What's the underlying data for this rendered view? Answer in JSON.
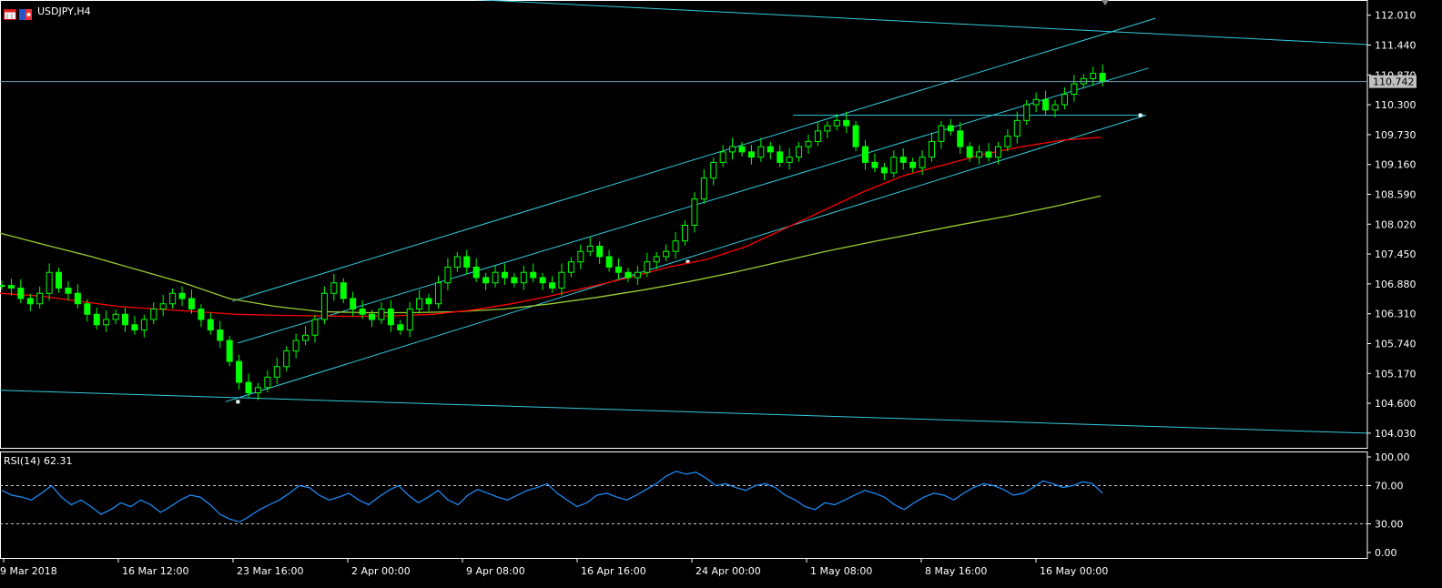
{
  "window": {
    "symbol_label": "USDJPY,H4",
    "indicator_label": "RSI(14) 62.31",
    "current_price": "110.742"
  },
  "colors": {
    "background": "#000000",
    "axis": "#ffffff",
    "candle": "#00ff00",
    "ma_red": "#ff0000",
    "ma_olive": "#9acd32",
    "channel": "#33ccdd",
    "rsi": "#1e90ff",
    "price_line": "#6fa0b8"
  },
  "chart_data": {
    "type": "line",
    "main": {
      "y_ticks": [
        "112.010",
        "111.440",
        "110.870",
        "110.300",
        "109.730",
        "109.160",
        "108.590",
        "108.020",
        "107.450",
        "106.880",
        "106.310",
        "105.740",
        "105.170",
        "104.600",
        "104.030"
      ],
      "ylim": [
        103.75,
        112.3
      ],
      "last_price": 110.742,
      "close_series": [
        106.85,
        106.8,
        106.6,
        106.5,
        106.7,
        107.1,
        106.8,
        106.7,
        106.5,
        106.3,
        106.1,
        106.2,
        106.3,
        106.1,
        106.0,
        106.2,
        106.4,
        106.5,
        106.7,
        106.6,
        106.4,
        106.2,
        106.0,
        105.8,
        105.4,
        105.0,
        104.8,
        104.9,
        105.1,
        105.3,
        105.6,
        105.8,
        105.9,
        106.2,
        106.7,
        106.9,
        106.6,
        106.4,
        106.3,
        106.2,
        106.4,
        106.1,
        106.0,
        106.4,
        106.6,
        106.5,
        106.9,
        107.2,
        107.4,
        107.2,
        107.0,
        106.9,
        107.1,
        107.0,
        106.9,
        107.1,
        107.0,
        106.9,
        106.8,
        107.1,
        107.3,
        107.5,
        107.6,
        107.4,
        107.2,
        107.1,
        107.0,
        107.1,
        107.3,
        107.4,
        107.5,
        107.7,
        108.0,
        108.5,
        108.9,
        109.2,
        109.4,
        109.5,
        109.4,
        109.3,
        109.5,
        109.4,
        109.2,
        109.3,
        109.5,
        109.6,
        109.8,
        109.9,
        110.0,
        109.9,
        109.5,
        109.2,
        109.1,
        109.0,
        109.3,
        109.2,
        109.1,
        109.3,
        109.6,
        109.9,
        109.8,
        109.5,
        109.3,
        109.4,
        109.3,
        109.5,
        109.7,
        110.0,
        110.3,
        110.4,
        110.2,
        110.3,
        110.5,
        110.7,
        110.8,
        110.9,
        110.742
      ],
      "ma_red": [
        106.7,
        106.65,
        106.55,
        106.45,
        106.4,
        106.35,
        106.3,
        106.28,
        106.27,
        106.26,
        106.27,
        106.3,
        106.38,
        106.5,
        106.65,
        106.82,
        107.0,
        107.2,
        107.35,
        107.6,
        107.95,
        108.3,
        108.65,
        108.95,
        109.15,
        109.35,
        109.5,
        109.62,
        109.68
      ],
      "ma_olive": [
        107.85,
        107.62,
        107.4,
        107.15,
        106.9,
        106.6,
        106.45,
        106.35,
        106.33,
        106.33,
        106.35,
        106.4,
        106.5,
        106.62,
        106.76,
        106.92,
        107.1,
        107.3,
        107.5,
        107.68,
        107.85,
        108.02,
        108.18,
        108.36,
        108.56
      ],
      "channel_lines": [
        {
          "x1": 0.0,
          "y1": 104.85,
          "x2": 1.0,
          "y2": 104.03
        },
        {
          "x1": 0.24,
          "y1": 112.45,
          "x2": 1.0,
          "y2": 111.45
        },
        {
          "x1": 0.165,
          "y1": 104.63,
          "x2": 0.838,
          "y2": 110.1
        },
        {
          "x1": 0.17,
          "y1": 106.55,
          "x2": 0.845,
          "y2": 111.95
        },
        {
          "x1": 0.174,
          "y1": 105.75,
          "x2": 0.84,
          "y2": 111.0
        },
        {
          "x1": 0.58,
          "y1": 110.1,
          "x2": 0.838,
          "y2": 110.1
        }
      ]
    },
    "rsi": {
      "y_ticks": [
        "100.00",
        "70.00",
        "30.00",
        "0.00"
      ],
      "ylim": [
        0,
        100
      ],
      "levels": [
        70,
        30
      ],
      "values": [
        65,
        60,
        58,
        55,
        62,
        70,
        58,
        50,
        55,
        48,
        40,
        45,
        52,
        48,
        55,
        50,
        42,
        48,
        55,
        60,
        58,
        50,
        40,
        35,
        32,
        38,
        45,
        50,
        55,
        62,
        70,
        68,
        60,
        55,
        58,
        62,
        55,
        50,
        58,
        65,
        70,
        60,
        52,
        58,
        65,
        55,
        50,
        60,
        66,
        62,
        58,
        55,
        60,
        65,
        68,
        72,
        62,
        55,
        48,
        52,
        60,
        62,
        58,
        55,
        60,
        66,
        72,
        80,
        85,
        82,
        84,
        78,
        70,
        72,
        68,
        65,
        70,
        72,
        68,
        60,
        55,
        48,
        45,
        52,
        50,
        55,
        60,
        65,
        62,
        58,
        50,
        45,
        52,
        58,
        62,
        60,
        55,
        62,
        68,
        72,
        70,
        66,
        60,
        62,
        68,
        75,
        72,
        68,
        70,
        74,
        72,
        62
      ],
      "last_value": 62.31
    },
    "x_tick_labels": [
      "9 Mar 2018",
      "16 Mar 12:00",
      "23 Mar 16:00",
      "2 Apr 00:00",
      "9 Apr 08:00",
      "16 Apr 16:00",
      "24 Apr 00:00",
      "1 May 08:00",
      "8 May 16:00",
      "16 May 00:00"
    ]
  }
}
